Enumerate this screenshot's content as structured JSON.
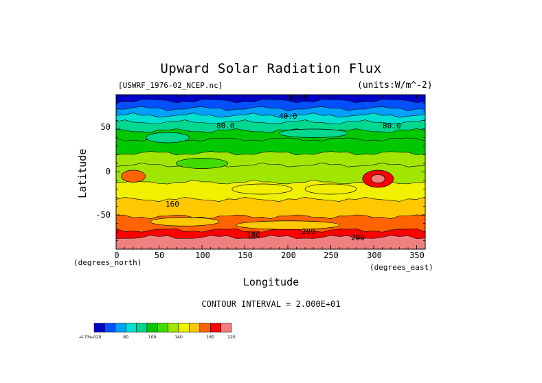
{
  "chart_data": {
    "type": "heatmap",
    "title": "Upward Solar Radiation Flux",
    "file_label": "[USWRF_1976-02_NCEP.nc]",
    "units_label": "(units:W/m^-2)",
    "xlabel": "Longitude",
    "ylabel": "Latitude",
    "x_unit_label": "(degrees_east)",
    "y_unit_label": "(degrees_north)",
    "xlim": [
      0,
      360
    ],
    "ylim": [
      -90,
      90
    ],
    "x_ticks": [
      "0",
      "50",
      "100",
      "150",
      "200",
      "250",
      "300",
      "350"
    ],
    "x_tick_values": [
      0,
      50,
      100,
      150,
      200,
      250,
      300,
      350
    ],
    "y_ticks": [
      "50",
      "0",
      "-50"
    ],
    "y_tick_values": [
      50,
      0,
      -50
    ],
    "contour_interval_text": "CONTOUR INTERVAL = 2.000E+01",
    "contour_labels": [
      "0.00",
      "40.0",
      "80.0",
      "80.0",
      "160",
      "200",
      "180",
      "200"
    ],
    "colorbar": {
      "colors": [
        "#0000c8",
        "#0050ff",
        "#00a0ff",
        "#00e0d0",
        "#00d890",
        "#00c800",
        "#40dc00",
        "#a0e600",
        "#f0f000",
        "#ffc800",
        "#ff6400",
        "#ff0000",
        "#f08080"
      ],
      "labels": [
        "-4.73e-020",
        "80",
        "100",
        "140",
        "160",
        "220"
      ]
    },
    "latitude_bands": [
      {
        "lat_top": 90,
        "lat_bottom": 83,
        "value": 0
      },
      {
        "lat_top": 83,
        "lat_bottom": 74,
        "value": 20
      },
      {
        "lat_top": 74,
        "lat_bottom": 66,
        "value": 40
      },
      {
        "lat_top": 66,
        "lat_bottom": 58,
        "value": 60
      },
      {
        "lat_top": 58,
        "lat_bottom": 48,
        "value": 80
      },
      {
        "lat_top": 48,
        "lat_bottom": 38,
        "value": 90
      },
      {
        "lat_top": 38,
        "lat_bottom": 22,
        "value": 100
      },
      {
        "lat_top": 22,
        "lat_bottom": 8,
        "value": 120
      },
      {
        "lat_top": 8,
        "lat_bottom": -12,
        "value": 130
      },
      {
        "lat_top": -12,
        "lat_bottom": -32,
        "value": 150
      },
      {
        "lat_top": -32,
        "lat_bottom": -52,
        "value": 170
      },
      {
        "lat_top": -52,
        "lat_bottom": -68,
        "value": 190
      },
      {
        "lat_top": -68,
        "lat_bottom": -76,
        "value": 200
      },
      {
        "lat_top": -76,
        "lat_bottom": -90,
        "value": 220
      }
    ],
    "patches": [
      {
        "lon": 20,
        "lat": -5,
        "rlon": 14,
        "rlat": 7,
        "value": 190
      },
      {
        "lon": 305,
        "lat": -8,
        "rlon": 18,
        "rlat": 10,
        "value": 200
      },
      {
        "lon": 305,
        "lat": -8,
        "rlon": 8,
        "rlat": 5,
        "value": 220
      },
      {
        "lon": 60,
        "lat": 40,
        "rlon": 25,
        "rlat": 6,
        "value": 80
      },
      {
        "lon": 230,
        "lat": 45,
        "rlon": 40,
        "rlat": 5,
        "value": 80
      },
      {
        "lon": 100,
        "lat": 10,
        "rlon": 30,
        "rlat": 6,
        "value": 110
      },
      {
        "lon": 170,
        "lat": -20,
        "rlon": 35,
        "rlat": 6,
        "value": 140
      },
      {
        "lon": 250,
        "lat": -20,
        "rlon": 30,
        "rlat": 6,
        "value": 150
      },
      {
        "lon": 80,
        "lat": -58,
        "rlon": 40,
        "rlat": 5,
        "value": 160
      },
      {
        "lon": 200,
        "lat": -62,
        "rlon": 60,
        "rlat": 5,
        "value": 170
      }
    ]
  }
}
